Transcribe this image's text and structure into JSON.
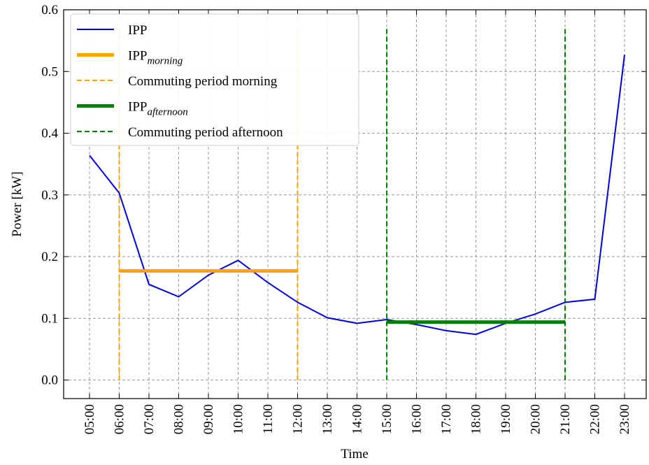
{
  "chart_data": {
    "type": "line",
    "xlabel": "Time",
    "ylabel": "Power [kW]",
    "categories": [
      "05:00",
      "06:00",
      "07:00",
      "08:00",
      "09:00",
      "10:00",
      "11:00",
      "12:00",
      "13:00",
      "14:00",
      "15:00",
      "16:00",
      "17:00",
      "18:00",
      "19:00",
      "20:00",
      "21:00",
      "22:00",
      "23:00"
    ],
    "series": [
      {
        "name": "IPP",
        "color": "#0000e0",
        "values": [
          0.364,
          0.303,
          0.155,
          0.135,
          0.17,
          0.194,
          0.158,
          0.126,
          0.101,
          0.092,
          0.098,
          0.09,
          0.08,
          0.074,
          0.092,
          0.107,
          0.126,
          0.131,
          0.527
        ]
      }
    ],
    "means": [
      {
        "name": "IPP",
        "name_sub": "morning",
        "color": "#ffa500",
        "value": 0.177,
        "x": [
          "06:00",
          "12:00"
        ]
      },
      {
        "name": "IPP",
        "name_sub": "afternoon",
        "color": "#008000",
        "value": 0.094,
        "x": [
          "15:00",
          "21:00"
        ]
      }
    ],
    "periods": [
      {
        "name": "Commuting period morning",
        "color": "#ffa500",
        "y_range": [
          0,
          0.573
        ],
        "x": [
          "06:00",
          "12:00"
        ]
      },
      {
        "name": "Commuting period afternoon",
        "color": "#008000",
        "y_range": [
          0,
          0.573
        ],
        "x": [
          "15:00",
          "21:00"
        ]
      }
    ],
    "ylim": [
      -0.03,
      0.6
    ],
    "yticks": [
      {
        "value": 0,
        "label": "0.0"
      },
      0.1,
      0.2,
      0.3,
      0.4,
      0.5,
      0.6
    ],
    "grid": true,
    "legend": "upper left"
  }
}
